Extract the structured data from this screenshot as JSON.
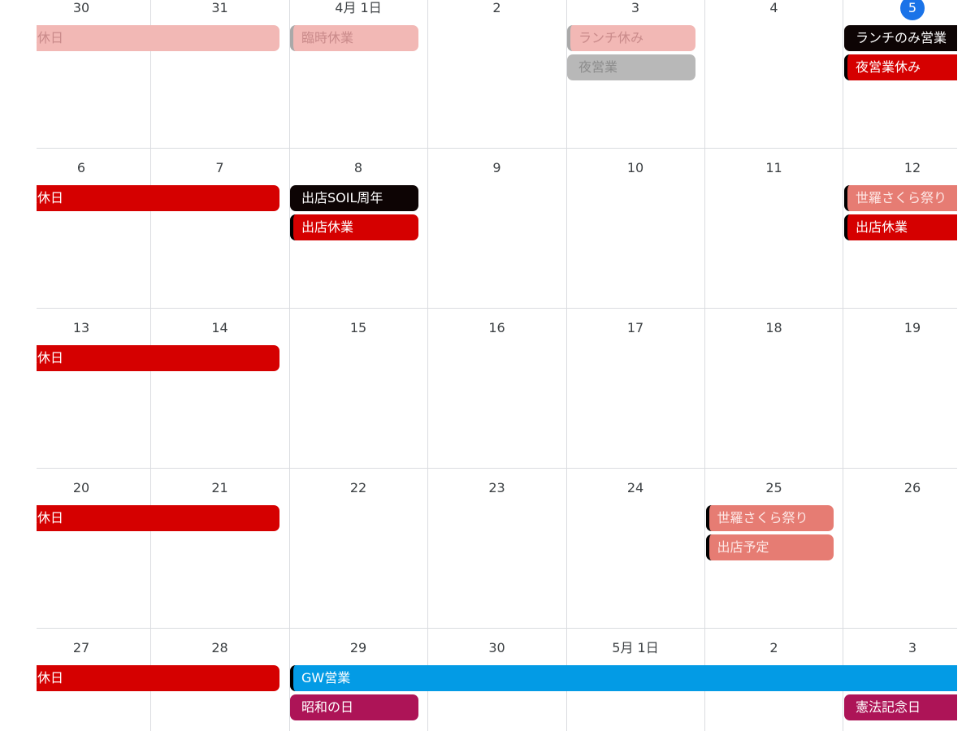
{
  "weeks": [
    {
      "days": [
        "30",
        "31",
        "4月 1日",
        "2",
        "3",
        "4",
        "5"
      ],
      "events": [
        "定休日",
        "臨時休業",
        "ランチ休み",
        "夜営業",
        "ランチのみ営業",
        "夜営業休み"
      ]
    },
    {
      "days": [
        "6",
        "7",
        "8",
        "9",
        "10",
        "11",
        "12"
      ],
      "events": [
        "定休日",
        "出店SOIL周年",
        "出店休業",
        "世羅さくら祭り",
        "出店休業"
      ]
    },
    {
      "days": [
        "13",
        "14",
        "15",
        "16",
        "17",
        "18",
        "19"
      ],
      "events": [
        "定休日"
      ]
    },
    {
      "days": [
        "20",
        "21",
        "22",
        "23",
        "24",
        "25",
        "26"
      ],
      "events": [
        "定休日",
        "世羅さくら祭り",
        "出店予定"
      ]
    },
    {
      "days": [
        "27",
        "28",
        "29",
        "30",
        "5月 1日",
        "2",
        "3"
      ],
      "events": [
        "定休日",
        "GW営業",
        "昭和の日",
        "憲法記念日"
      ]
    }
  ]
}
